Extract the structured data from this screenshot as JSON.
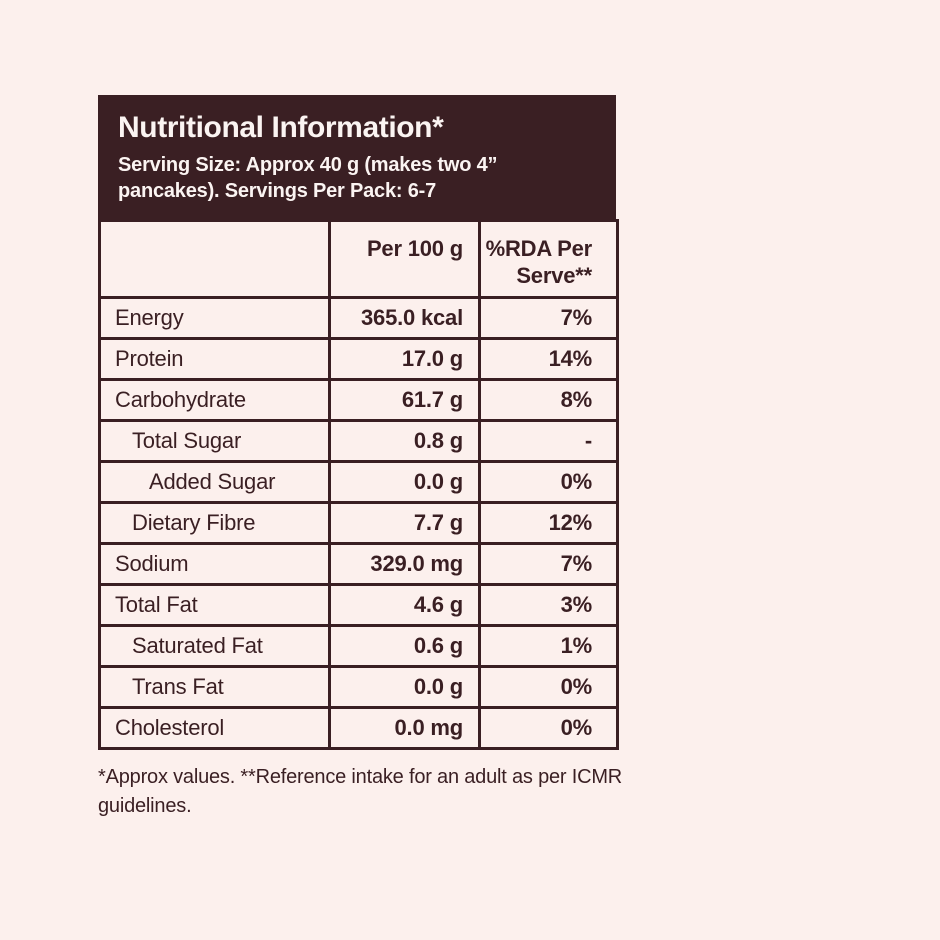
{
  "colors": {
    "page_background": "#FCF0ED",
    "brand_dark": "#3A1F23",
    "header_text": "#FBF4F2"
  },
  "header": {
    "title": "Nutritional Information*",
    "serving_info": "Serving Size: Approx 40 g (makes two 4” pancakes). Servings Per Pack: 6-7"
  },
  "table": {
    "columns": [
      "",
      "Per 100 g",
      "%RDA Per Serve**"
    ],
    "rows": [
      {
        "label": "Energy",
        "indent": 0,
        "per_100g": "365.0 kcal",
        "rda": "7%"
      },
      {
        "label": "Protein",
        "indent": 0,
        "per_100g": "17.0 g",
        "rda": "14%"
      },
      {
        "label": "Carbohydrate",
        "indent": 0,
        "per_100g": "61.7 g",
        "rda": "8%"
      },
      {
        "label": "Total Sugar",
        "indent": 1,
        "per_100g": "0.8 g",
        "rda": "-"
      },
      {
        "label": "Added Sugar",
        "indent": 2,
        "per_100g": "0.0 g",
        "rda": "0%"
      },
      {
        "label": "Dietary Fibre",
        "indent": 1,
        "per_100g": "7.7 g",
        "rda": "12%"
      },
      {
        "label": "Sodium",
        "indent": 0,
        "per_100g": "329.0 mg",
        "rda": "7%"
      },
      {
        "label": "Total Fat",
        "indent": 0,
        "per_100g": "4.6 g",
        "rda": "3%"
      },
      {
        "label": "Saturated Fat",
        "indent": 1,
        "per_100g": "0.6 g",
        "rda": "1%"
      },
      {
        "label": "Trans Fat",
        "indent": 1,
        "per_100g": "0.0 g",
        "rda": "0%"
      },
      {
        "label": "Cholesterol",
        "indent": 0,
        "per_100g": "0.0 mg",
        "rda": "0%"
      }
    ]
  },
  "footnote": "*Approx values. **Reference intake for an adult as per ICMR guidelines."
}
